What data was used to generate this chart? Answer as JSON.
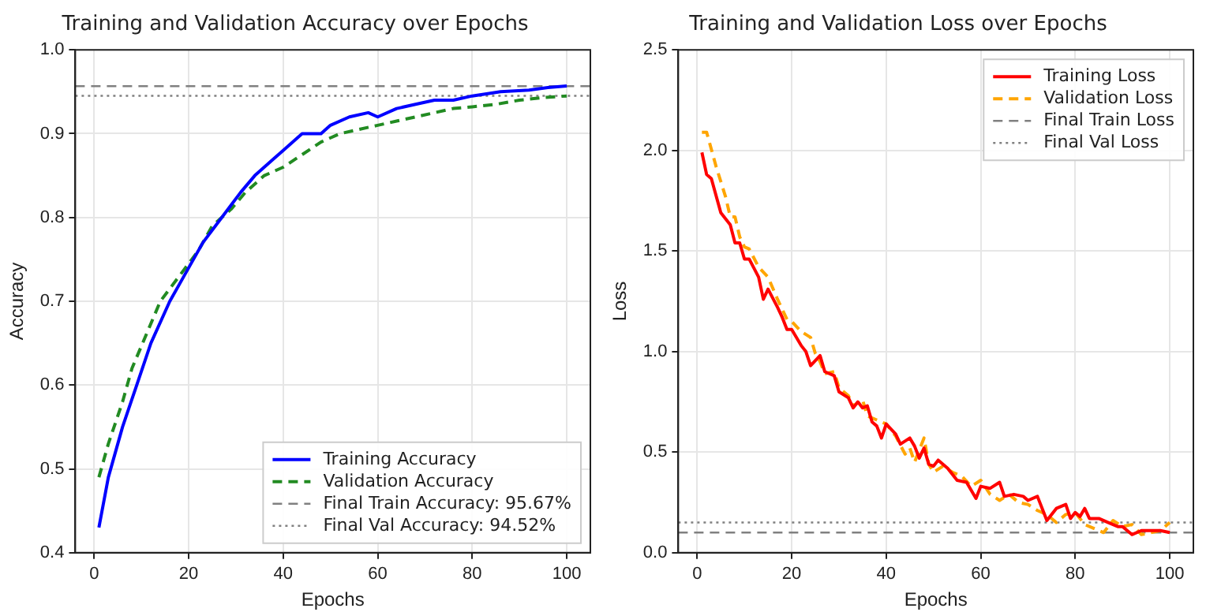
{
  "chart_data": [
    {
      "type": "line",
      "title": "Training and Validation Accuracy over Epochs",
      "xlabel": "Epochs",
      "ylabel": "Accuracy",
      "xlim": [
        -4,
        105
      ],
      "xticks": [
        0,
        20,
        40,
        60,
        80,
        100
      ],
      "ylim": [
        0.4,
        1.0
      ],
      "yticks": [
        {
          "value": 0.4,
          "label": "0.4"
        },
        {
          "value": 0.5,
          "label": "0.5"
        },
        {
          "value": 0.6,
          "label": "0.6"
        },
        {
          "value": 0.7,
          "label": "0.7"
        },
        {
          "value": 0.8,
          "label": "0.8"
        },
        {
          "value": 0.9,
          "label": "0.9"
        },
        {
          "value": 1.0,
          "label": "1.0"
        }
      ],
      "grid": true,
      "legend": "bottom right",
      "marker": "none",
      "series": [
        {
          "name": "Training Accuracy",
          "color": "#0000ff",
          "line_style": "solid",
          "x": [
            1,
            3,
            6,
            9,
            12,
            16,
            19,
            23,
            27,
            31,
            34,
            38,
            40,
            44,
            48,
            50,
            54,
            58,
            60,
            64,
            68,
            72,
            76,
            80,
            86,
            92,
            96,
            100
          ],
          "values": [
            0.43,
            0.49,
            0.55,
            0.6,
            0.65,
            0.7,
            0.73,
            0.77,
            0.8,
            0.83,
            0.85,
            0.87,
            0.88,
            0.9,
            0.9,
            0.91,
            0.92,
            0.925,
            0.92,
            0.93,
            0.935,
            0.94,
            0.94,
            0.945,
            0.95,
            0.952,
            0.955,
            0.957
          ]
        },
        {
          "name": "Validation Accuracy",
          "color": "#228b22",
          "line_style": "dashed",
          "x": [
            1,
            3,
            6,
            8,
            11,
            14,
            18,
            22,
            25,
            29,
            32,
            36,
            40,
            44,
            48,
            52,
            56,
            60,
            64,
            68,
            72,
            76,
            80,
            85,
            90,
            95,
            100
          ],
          "values": [
            0.49,
            0.53,
            0.58,
            0.62,
            0.66,
            0.7,
            0.73,
            0.76,
            0.79,
            0.81,
            0.83,
            0.85,
            0.86,
            0.875,
            0.89,
            0.9,
            0.905,
            0.91,
            0.915,
            0.92,
            0.925,
            0.93,
            0.932,
            0.935,
            0.94,
            0.943,
            0.945
          ]
        }
      ],
      "ref_lines": [
        {
          "axis": "y",
          "value": 0.9567,
          "label": "Final Train Accuracy: 95.67%",
          "color": "#808080",
          "line_style": "dashed"
        },
        {
          "axis": "y",
          "value": 0.9452,
          "label": "Final Val Accuracy: 94.52%",
          "color": "#808080",
          "line_style": "dotted"
        }
      ]
    },
    {
      "type": "line",
      "title": "Training and Validation Loss over Epochs",
      "xlabel": "Epochs",
      "ylabel": "Loss",
      "xlim": [
        -4,
        105
      ],
      "xticks": [
        0,
        20,
        40,
        60,
        80,
        100
      ],
      "ylim": [
        0,
        2.5
      ],
      "yticks": [
        {
          "value": 0,
          "label": "0.0"
        },
        {
          "value": 0.5,
          "label": "0.5"
        },
        {
          "value": 1,
          "label": "1.0"
        },
        {
          "value": 1.5,
          "label": "1.5"
        },
        {
          "value": 2,
          "label": "2.0"
        },
        {
          "value": 2.5,
          "label": "2.5"
        }
      ],
      "grid": true,
      "legend": "top right",
      "marker": "none",
      "series": [
        {
          "name": "Training Loss",
          "color": "#ff0000",
          "line_style": "solid",
          "x": [
            1,
            2,
            3,
            5,
            7,
            8,
            9,
            10,
            11,
            13,
            14,
            15,
            17,
            18,
            19,
            20,
            22,
            23,
            24,
            26,
            27,
            29,
            30,
            32,
            33,
            34,
            35,
            36,
            37,
            38,
            39,
            40,
            42,
            43,
            45,
            46,
            47,
            48,
            49,
            50,
            51,
            53,
            55,
            57,
            59,
            60,
            62,
            64,
            65,
            67,
            69,
            70,
            72,
            74,
            76,
            78,
            79,
            80,
            81,
            82,
            83,
            85,
            87,
            89,
            90,
            91,
            92,
            94,
            96,
            98,
            100
          ],
          "values": [
            1.99,
            1.88,
            1.86,
            1.69,
            1.63,
            1.54,
            1.54,
            1.46,
            1.46,
            1.37,
            1.26,
            1.31,
            1.22,
            1.17,
            1.11,
            1.11,
            1.03,
            1.0,
            0.93,
            0.98,
            0.9,
            0.88,
            0.8,
            0.77,
            0.72,
            0.75,
            0.72,
            0.73,
            0.65,
            0.63,
            0.57,
            0.64,
            0.59,
            0.54,
            0.57,
            0.53,
            0.47,
            0.52,
            0.44,
            0.43,
            0.46,
            0.42,
            0.36,
            0.35,
            0.27,
            0.33,
            0.32,
            0.35,
            0.28,
            0.29,
            0.28,
            0.26,
            0.28,
            0.16,
            0.22,
            0.24,
            0.17,
            0.2,
            0.18,
            0.22,
            0.17,
            0.17,
            0.15,
            0.13,
            0.13,
            0.11,
            0.09,
            0.11,
            0.11,
            0.11,
            0.1
          ]
        },
        {
          "name": "Validation Loss",
          "color": "#ffa500",
          "line_style": "dashed",
          "x": [
            1,
            2,
            4,
            6,
            7,
            8,
            9,
            10,
            11,
            13,
            15,
            17,
            19,
            20,
            22,
            24,
            25,
            26,
            27,
            29,
            30,
            32,
            33,
            35,
            36,
            38,
            40,
            42,
            44,
            45,
            46,
            48,
            49,
            50,
            52,
            54,
            56,
            58,
            60,
            62,
            64,
            66,
            68,
            70,
            72,
            74,
            76,
            78,
            80,
            82,
            84,
            86,
            88,
            90,
            92,
            94,
            96,
            98,
            100
          ],
          "values": [
            2.09,
            2.09,
            1.92,
            1.77,
            1.67,
            1.67,
            1.57,
            1.52,
            1.51,
            1.42,
            1.37,
            1.26,
            1.16,
            1.15,
            1.1,
            1.07,
            0.99,
            0.95,
            0.89,
            0.9,
            0.82,
            0.78,
            0.73,
            0.76,
            0.68,
            0.66,
            0.64,
            0.58,
            0.49,
            0.52,
            0.45,
            0.57,
            0.44,
            0.4,
            0.43,
            0.4,
            0.38,
            0.33,
            0.36,
            0.29,
            0.26,
            0.29,
            0.25,
            0.24,
            0.21,
            0.19,
            0.15,
            0.19,
            0.2,
            0.14,
            0.12,
            0.1,
            0.16,
            0.13,
            0.14,
            0.09,
            0.1,
            0.11,
            0.15
          ]
        }
      ],
      "ref_lines": [
        {
          "axis": "y",
          "value": 0.1,
          "label": "Final Train Loss",
          "color": "#808080",
          "line_style": "dashed"
        },
        {
          "axis": "y",
          "value": 0.15,
          "label": "Final Val Loss",
          "color": "#808080",
          "line_style": "dotted"
        }
      ]
    }
  ]
}
